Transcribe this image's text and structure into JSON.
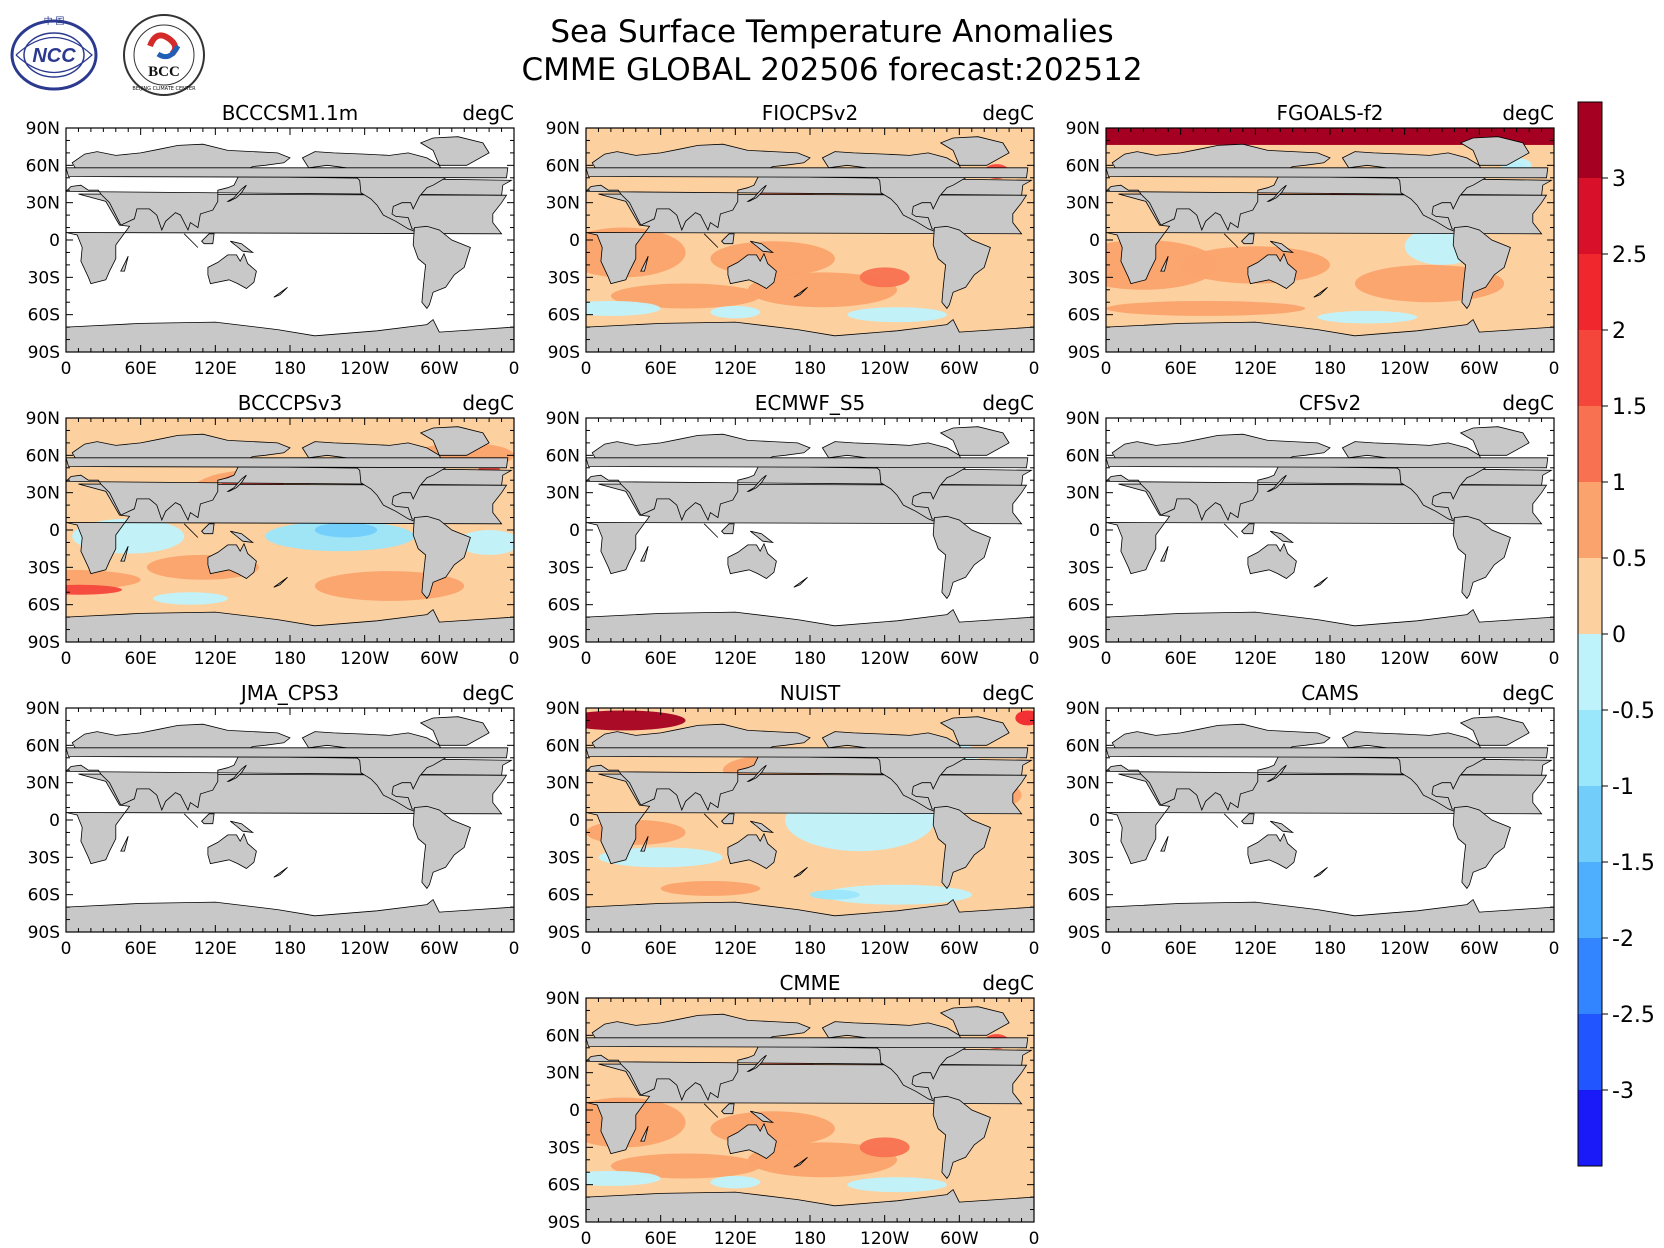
{
  "figure": {
    "title_line1": "Sea Surface Temperature Anomalies",
    "title_line2": "CMME GLOBAL 202506 forecast:202512",
    "unit": "degC",
    "logos": [
      {
        "name": "ncc-logo",
        "text": "NCC",
        "subtext": "中 国"
      },
      {
        "name": "bcc-logo",
        "text": "BCC",
        "subtext": "BEIJING CLIMATE CENTER"
      }
    ]
  },
  "axes": {
    "lat_ticks": [
      "90N",
      "60N",
      "30N",
      "0",
      "30S",
      "60S",
      "90S"
    ],
    "lon_ticks": [
      "0",
      "60E",
      "120E",
      "180",
      "120W",
      "60W",
      "0"
    ]
  },
  "colorbar": {
    "levels": [
      -3.5,
      -3,
      -2.5,
      -2,
      -1.5,
      -1,
      -0.5,
      0,
      0.5,
      1,
      1.5,
      2,
      2.5,
      3,
      3.5
    ],
    "labels": [
      "3",
      "2.5",
      "2",
      "1.5",
      "1",
      "0.5",
      "0",
      "-0.5",
      "-1",
      "-1.5",
      "-2",
      "-2.5",
      "-3"
    ],
    "colors_top_to_bottom": [
      "#a50021",
      "#d8102a",
      "#f0282d",
      "#f5463c",
      "#f87150",
      "#fba36d",
      "#fdd09f",
      "#bff3fc",
      "#9ae6fb",
      "#73cdfb",
      "#4fafff",
      "#3385ff",
      "#2055ff",
      "#1a1af8"
    ]
  },
  "land_color": "#c8c8c8",
  "panels": [
    {
      "name": "BCCCSM1.1m",
      "state": "no-data"
    },
    {
      "name": "FIOCPSv2",
      "state": "warm"
    },
    {
      "name": "FGOALS-f2",
      "state": "warm-strong"
    },
    {
      "name": "BCCCPSv3",
      "state": "mixed"
    },
    {
      "name": "ECMWF_S5",
      "state": "no-data"
    },
    {
      "name": "CFSv2",
      "state": "no-data"
    },
    {
      "name": "JMA_CPS3",
      "state": "no-data"
    },
    {
      "name": "NUIST",
      "state": "mixed-cool-pacific"
    },
    {
      "name": "CAMS",
      "state": "no-data"
    },
    {
      "name": "CMME",
      "state": "warm"
    }
  ]
}
